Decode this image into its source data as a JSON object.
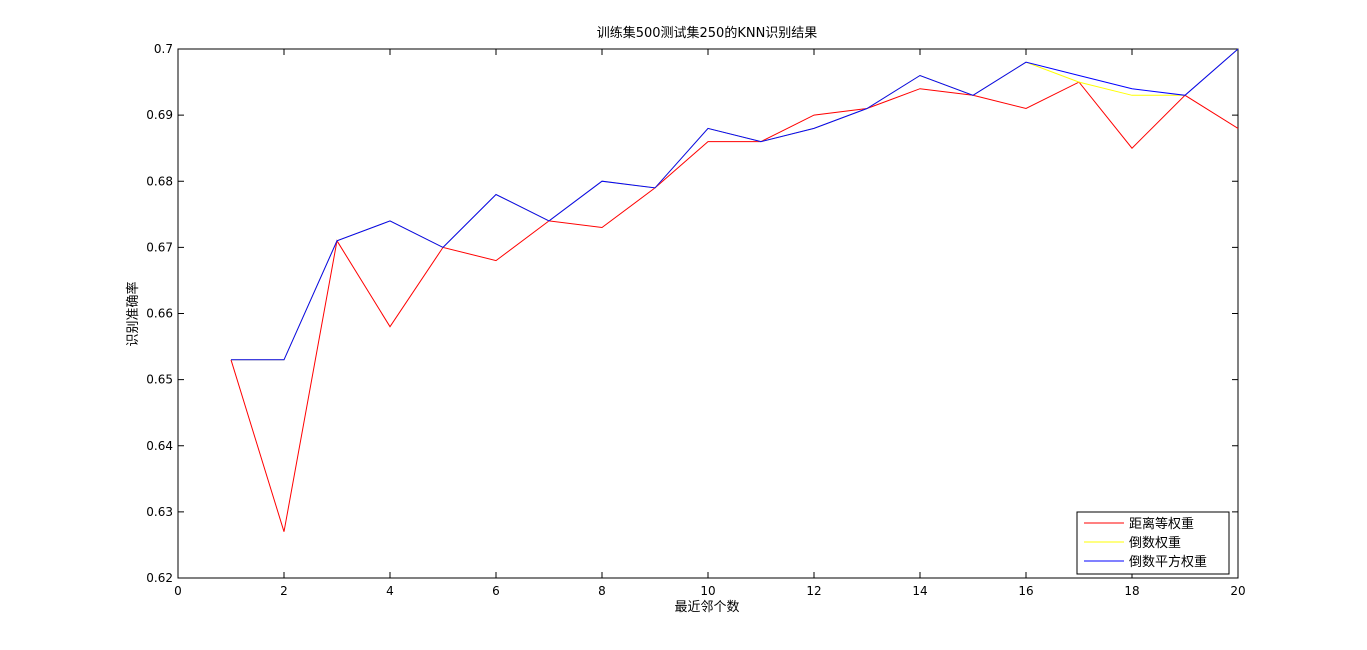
{
  "chart_data": {
    "type": "line",
    "title": "训练集500测试集250的KNN识别结果",
    "xlabel": "最近邻个数",
    "ylabel": "识别准确率",
    "xlim": [
      0,
      20
    ],
    "ylim": [
      0.62,
      0.7
    ],
    "xticks": [
      "0",
      "2",
      "4",
      "6",
      "8",
      "10",
      "12",
      "14",
      "16",
      "18",
      "20"
    ],
    "yticks": [
      "0.62",
      "0.63",
      "0.64",
      "0.65",
      "0.66",
      "0.67",
      "0.68",
      "0.69",
      "0.7"
    ],
    "grid": false,
    "legend_position": "bottom-right",
    "x": [
      1,
      2,
      3,
      4,
      5,
      6,
      7,
      8,
      9,
      10,
      11,
      12,
      13,
      14,
      15,
      16,
      17,
      18,
      19,
      20
    ],
    "series": [
      {
        "name": "距离等权重",
        "color": "#ff0000",
        "values": [
          0.653,
          0.627,
          0.671,
          0.658,
          0.67,
          0.668,
          0.674,
          0.673,
          0.679,
          0.686,
          0.686,
          0.69,
          0.691,
          0.694,
          0.693,
          0.691,
          0.695,
          0.685,
          0.693,
          0.688
        ]
      },
      {
        "name": "倒数权重",
        "color": "#ffff00",
        "values": [
          0.653,
          0.653,
          0.671,
          0.674,
          0.67,
          0.678,
          0.674,
          0.68,
          0.679,
          0.688,
          0.686,
          0.688,
          0.691,
          0.696,
          0.693,
          0.698,
          0.695,
          0.693,
          0.693,
          0.7
        ]
      },
      {
        "name": "倒数平方权重",
        "color": "#0000ff",
        "values": [
          0.653,
          0.653,
          0.671,
          0.674,
          0.67,
          0.678,
          0.674,
          0.68,
          0.679,
          0.688,
          0.686,
          0.688,
          0.691,
          0.696,
          0.693,
          0.698,
          0.696,
          0.694,
          0.693,
          0.7
        ]
      }
    ]
  }
}
